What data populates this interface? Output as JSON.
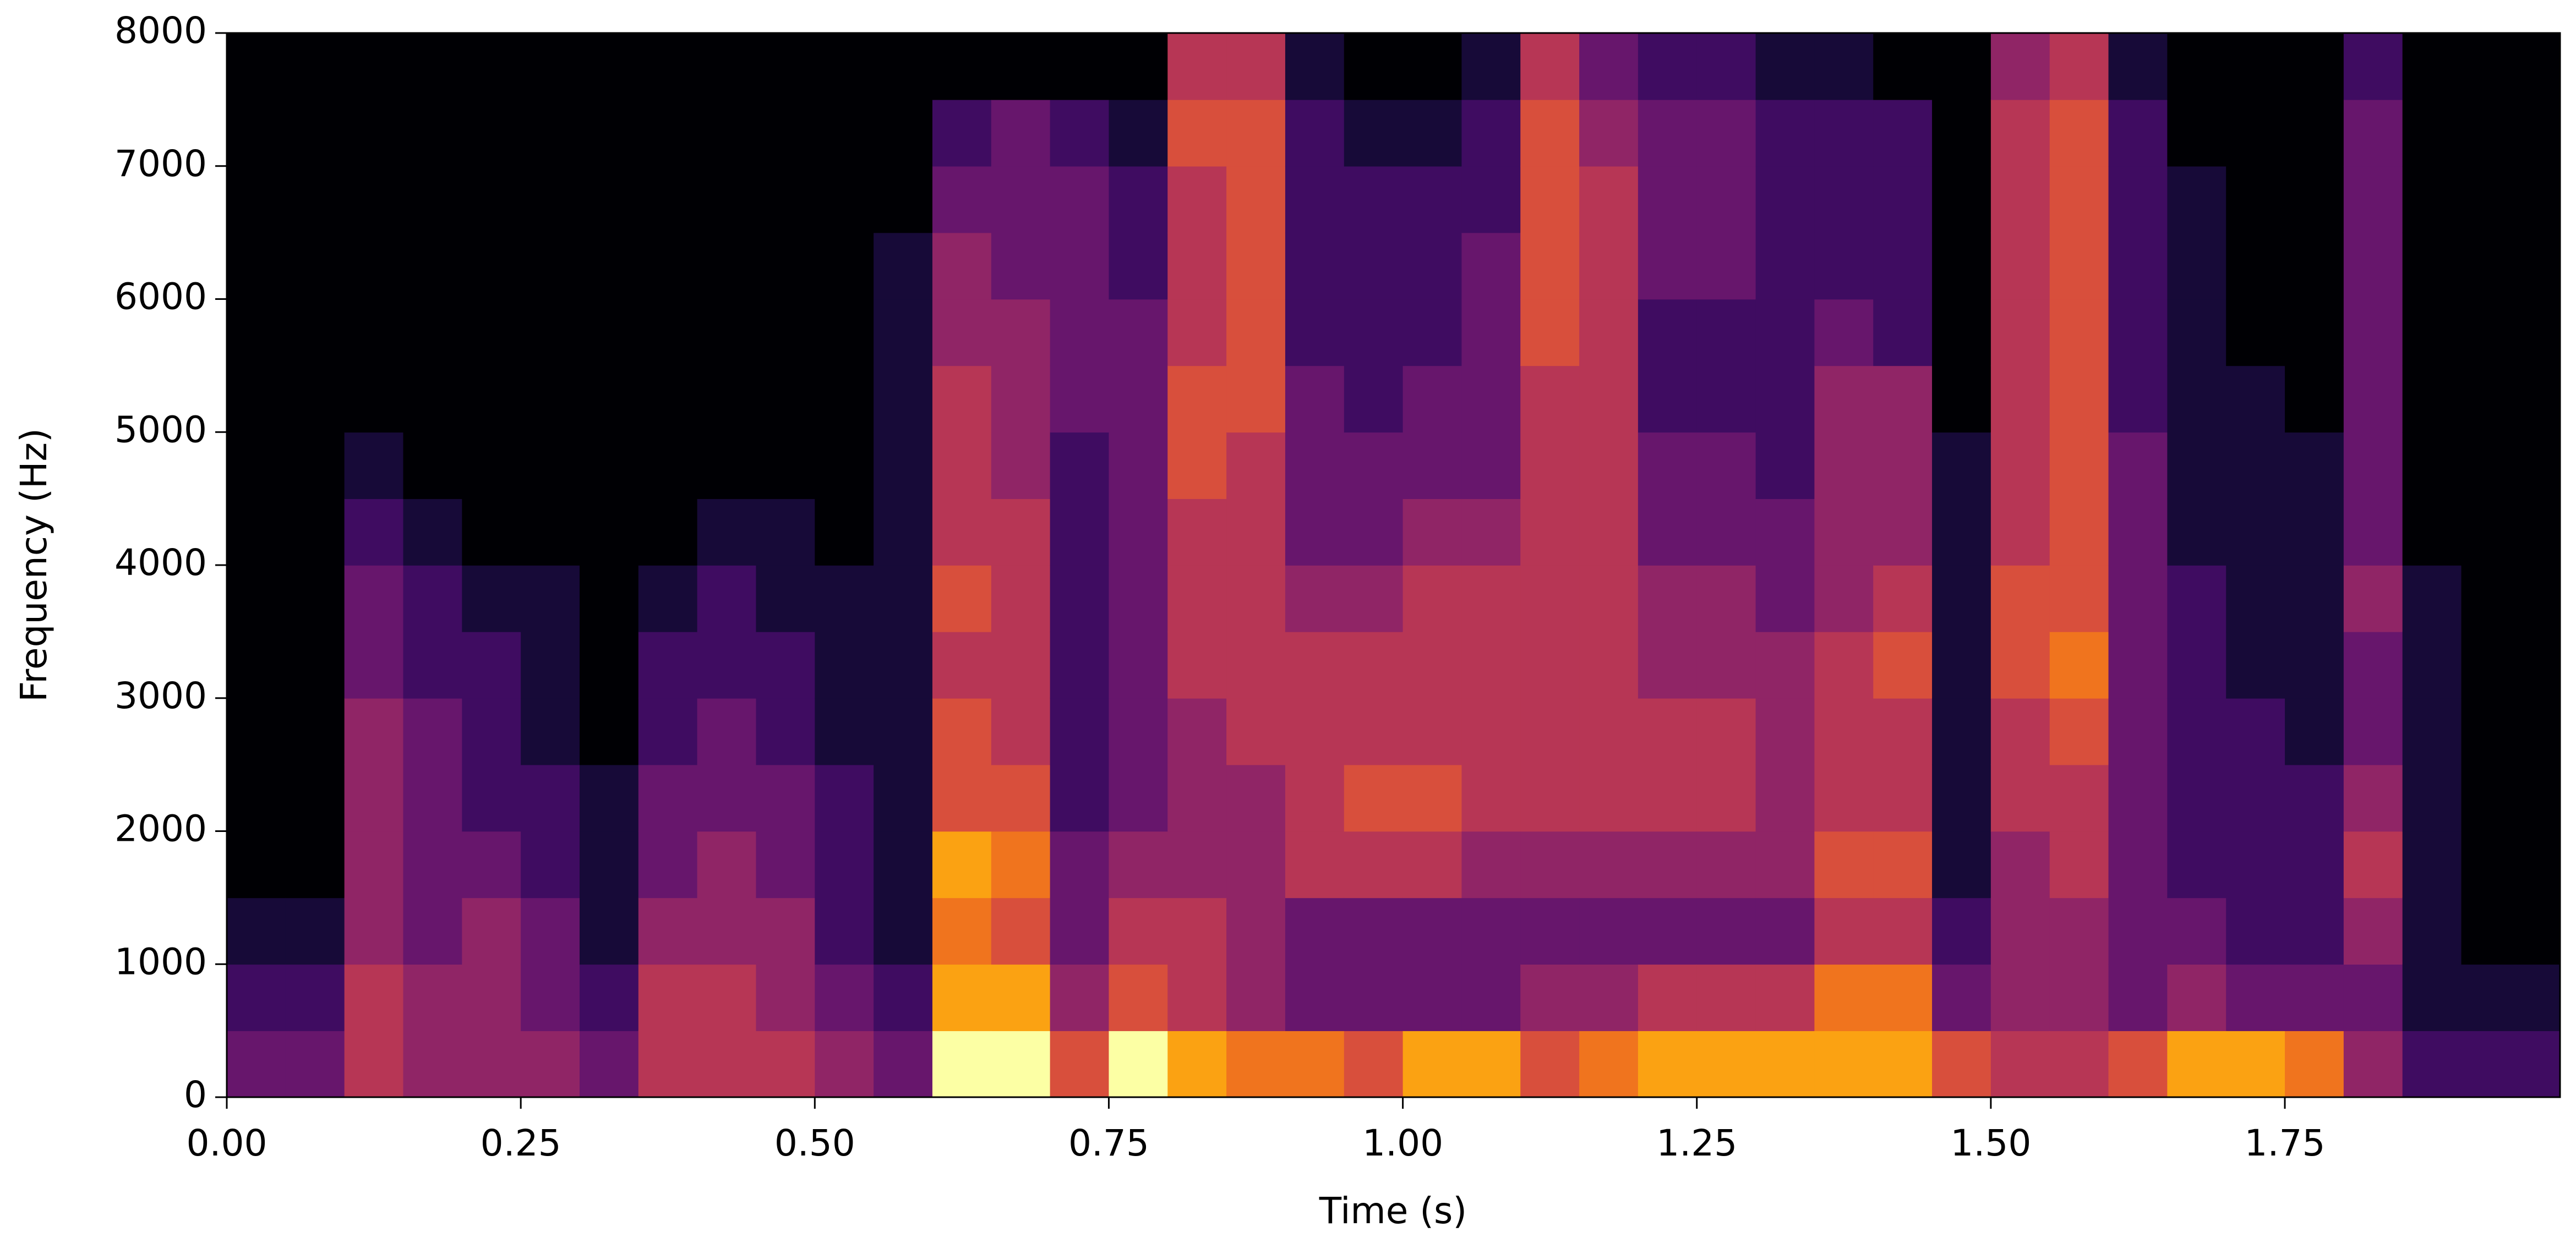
{
  "chart_data": {
    "type": "heatmap",
    "xlabel": "Time (s)",
    "ylabel": "Frequency (Hz)",
    "colormap": "inferno",
    "xlim": [
      0,
      1.984
    ],
    "ylim": [
      0,
      8000
    ],
    "xticks": [
      {
        "value": 0,
        "label": "0.00"
      },
      {
        "value": 0.25,
        "label": "0.25"
      },
      {
        "value": 0.5,
        "label": "0.50"
      },
      {
        "value": 0.75,
        "label": "0.75"
      },
      {
        "value": 1,
        "label": "1.00"
      },
      {
        "value": 1.25,
        "label": "1.25"
      },
      {
        "value": 1.5,
        "label": "1.50"
      },
      {
        "value": 1.75,
        "label": "1.75"
      }
    ],
    "yticks": [
      0,
      1000,
      2000,
      3000,
      4000,
      5000,
      6000,
      7000,
      8000
    ],
    "x": [
      0.025,
      0.075,
      0.125,
      0.175,
      0.225,
      0.275,
      0.325,
      0.375,
      0.425,
      0.475,
      0.525,
      0.575,
      0.625,
      0.675,
      0.725,
      0.775,
      0.825,
      0.875,
      0.925,
      0.975,
      1.025,
      1.075,
      1.125,
      1.175,
      1.225,
      1.275,
      1.325,
      1.375,
      1.425,
      1.475,
      1.525,
      1.575,
      1.625,
      1.675,
      1.725,
      1.775,
      1.825,
      1.875,
      1.925,
      1.975
    ],
    "y": [
      250,
      750,
      1250,
      1750,
      2250,
      2750,
      3250,
      3750,
      4250,
      4750,
      5250,
      5750,
      6250,
      6750,
      7250,
      7750
    ],
    "z": [
      [
        3,
        2,
        1,
        0,
        0,
        0,
        0,
        0,
        0,
        0,
        0,
        0,
        0,
        0,
        0,
        0
      ],
      [
        3,
        2,
        1,
        0,
        0,
        0,
        0,
        0,
        0,
        0,
        0,
        0,
        0,
        0,
        0,
        0
      ],
      [
        5,
        5,
        4,
        4,
        4,
        4,
        3,
        3,
        2,
        1,
        0,
        0,
        0,
        0,
        0,
        0
      ],
      [
        4,
        4,
        3,
        3,
        3,
        3,
        2,
        2,
        1,
        0,
        0,
        0,
        0,
        0,
        0,
        0
      ],
      [
        4,
        4,
        4,
        3,
        2,
        2,
        2,
        1,
        0,
        0,
        0,
        0,
        0,
        0,
        0,
        0
      ],
      [
        4,
        3,
        3,
        2,
        2,
        1,
        1,
        1,
        0,
        0,
        0,
        0,
        0,
        0,
        0,
        0
      ],
      [
        3,
        2,
        1,
        1,
        1,
        0,
        0,
        0,
        0,
        0,
        0,
        0,
        0,
        0,
        0,
        0
      ],
      [
        5,
        5,
        4,
        3,
        3,
        2,
        2,
        1,
        0,
        0,
        0,
        0,
        0,
        0,
        0,
        0
      ],
      [
        5,
        5,
        4,
        4,
        3,
        3,
        2,
        2,
        1,
        0,
        0,
        0,
        0,
        0,
        0,
        0
      ],
      [
        5,
        4,
        4,
        3,
        3,
        2,
        2,
        1,
        1,
        0,
        0,
        0,
        0,
        0,
        0,
        0
      ],
      [
        4,
        3,
        2,
        2,
        2,
        1,
        1,
        1,
        0,
        0,
        0,
        0,
        0,
        0,
        0,
        0
      ],
      [
        3,
        2,
        1,
        1,
        1,
        1,
        1,
        1,
        1,
        1,
        1,
        1,
        1,
        0,
        0,
        0
      ],
      [
        9,
        8,
        7,
        8,
        6,
        6,
        5,
        6,
        5,
        5,
        5,
        4,
        4,
        3,
        2,
        0
      ],
      [
        9,
        8,
        6,
        7,
        6,
        5,
        5,
        5,
        5,
        4,
        4,
        4,
        3,
        3,
        3,
        0
      ],
      [
        6,
        4,
        3,
        3,
        2,
        2,
        2,
        2,
        2,
        2,
        3,
        3,
        3,
        3,
        2,
        0
      ],
      [
        9,
        6,
        5,
        4,
        3,
        3,
        3,
        3,
        3,
        3,
        3,
        3,
        2,
        2,
        1,
        0
      ],
      [
        8,
        5,
        5,
        4,
        4,
        4,
        5,
        5,
        5,
        6,
        6,
        5,
        5,
        5,
        6,
        5
      ],
      [
        7,
        4,
        4,
        4,
        4,
        5,
        5,
        5,
        5,
        5,
        6,
        6,
        6,
        6,
        6,
        5
      ],
      [
        7,
        3,
        3,
        5,
        5,
        5,
        5,
        4,
        3,
        3,
        3,
        2,
        2,
        2,
        2,
        1
      ],
      [
        6,
        3,
        3,
        5,
        6,
        5,
        5,
        4,
        3,
        3,
        2,
        2,
        2,
        2,
        1,
        0
      ],
      [
        8,
        3,
        3,
        5,
        6,
        5,
        5,
        5,
        4,
        3,
        3,
        2,
        2,
        2,
        1,
        0
      ],
      [
        8,
        3,
        3,
        4,
        5,
        5,
        5,
        5,
        4,
        3,
        3,
        3,
        3,
        2,
        2,
        1
      ],
      [
        6,
        4,
        3,
        4,
        5,
        5,
        5,
        5,
        5,
        5,
        5,
        6,
        6,
        6,
        6,
        5
      ],
      [
        7,
        4,
        3,
        4,
        5,
        5,
        5,
        5,
        5,
        5,
        5,
        5,
        5,
        5,
        4,
        3
      ],
      [
        8,
        5,
        3,
        4,
        5,
        5,
        4,
        4,
        3,
        3,
        2,
        2,
        3,
        3,
        3,
        2
      ],
      [
        8,
        5,
        3,
        4,
        5,
        5,
        4,
        4,
        3,
        3,
        2,
        2,
        3,
        3,
        3,
        2
      ],
      [
        8,
        5,
        3,
        4,
        4,
        4,
        4,
        3,
        3,
        2,
        2,
        2,
        2,
        2,
        2,
        1
      ],
      [
        8,
        7,
        5,
        6,
        5,
        5,
        5,
        4,
        4,
        4,
        4,
        3,
        2,
        2,
        2,
        1
      ],
      [
        8,
        7,
        5,
        6,
        5,
        5,
        6,
        5,
        4,
        4,
        4,
        2,
        2,
        2,
        2,
        0
      ],
      [
        6,
        3,
        2,
        1,
        1,
        1,
        1,
        1,
        1,
        1,
        0,
        0,
        0,
        0,
        0,
        0
      ],
      [
        5,
        4,
        4,
        4,
        5,
        5,
        6,
        6,
        5,
        5,
        5,
        5,
        5,
        5,
        5,
        4
      ],
      [
        5,
        4,
        4,
        5,
        5,
        6,
        7,
        6,
        6,
        6,
        6,
        6,
        6,
        6,
        6,
        5
      ],
      [
        6,
        3,
        3,
        3,
        3,
        3,
        3,
        3,
        3,
        3,
        2,
        2,
        2,
        2,
        2,
        1
      ],
      [
        8,
        4,
        3,
        2,
        2,
        2,
        2,
        2,
        1,
        1,
        1,
        1,
        1,
        1,
        0,
        0
      ],
      [
        8,
        3,
        2,
        2,
        2,
        2,
        1,
        1,
        1,
        1,
        1,
        0,
        0,
        0,
        0,
        0
      ],
      [
        7,
        3,
        2,
        2,
        2,
        1,
        1,
        1,
        1,
        1,
        0,
        0,
        0,
        0,
        0,
        0
      ],
      [
        4,
        3,
        4,
        5,
        4,
        3,
        3,
        4,
        3,
        3,
        3,
        3,
        3,
        3,
        3,
        2
      ],
      [
        2,
        1,
        1,
        1,
        1,
        1,
        1,
        1,
        0,
        0,
        0,
        0,
        0,
        0,
        0,
        0
      ],
      [
        2,
        1,
        0,
        0,
        0,
        0,
        0,
        0,
        0,
        0,
        0,
        0,
        0,
        0,
        0,
        0
      ],
      [
        2,
        1,
        0,
        0,
        0,
        0,
        0,
        0,
        0,
        0,
        0,
        0,
        0,
        0,
        0,
        0
      ]
    ]
  }
}
